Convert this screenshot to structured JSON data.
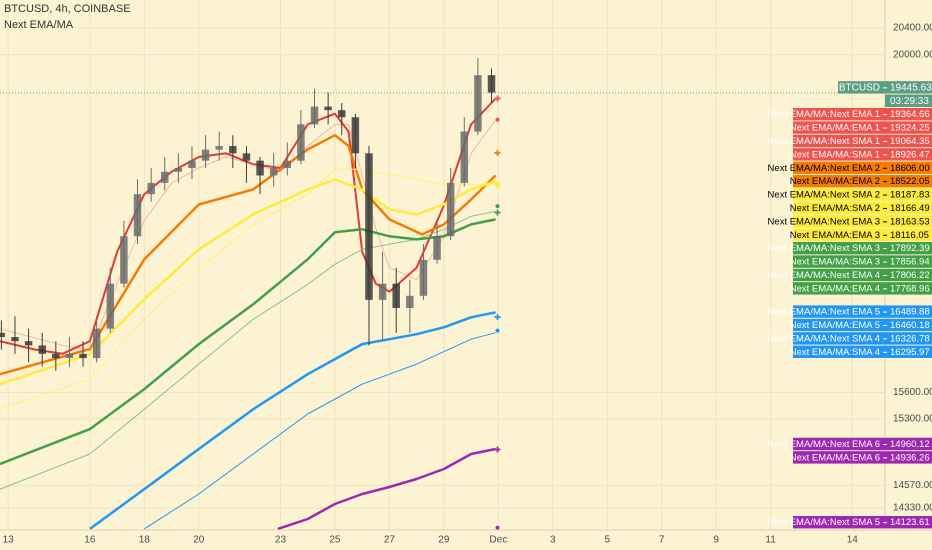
{
  "chart_data": {
    "type": "candlestick",
    "title": "BTCUSD, 4h, COINBASE",
    "subtitle": "Next EMA/MA",
    "log_scale": true,
    "grid": true,
    "ylim": [
      14100,
      20820
    ],
    "yticks": [
      {
        "value": 20400,
        "label": "20400.00"
      },
      {
        "value": 20000,
        "label": "20000.00"
      },
      {
        "value": 15600,
        "label": "15600.00"
      },
      {
        "value": 15300,
        "label": "15300.00"
      },
      {
        "value": 14570,
        "label": "14570.00"
      },
      {
        "value": 14330,
        "label": "14330.00"
      }
    ],
    "xlim": [
      12.7,
      45.2
    ],
    "xticks": [
      13,
      16,
      18,
      20,
      23,
      25,
      27,
      29,
      {
        "value": 31,
        "label": "Dec"
      },
      {
        "value": 33,
        "label": "3"
      },
      {
        "value": 35,
        "label": "5"
      },
      {
        "value": 37,
        "label": "7"
      },
      {
        "value": 39,
        "label": "9"
      },
      {
        "value": 41,
        "label": "11"
      },
      {
        "value": 44,
        "label": "14"
      }
    ],
    "up_color": "#6b6b6b",
    "down_color": "#3a3a3a",
    "x": [
      12.75,
      13.25,
      13.75,
      14.25,
      14.75,
      15.25,
      15.75,
      16.25,
      16.75,
      17.25,
      17.75,
      18.25,
      18.75,
      19.25,
      19.75,
      20.25,
      20.75,
      21.25,
      21.75,
      22.25,
      22.75,
      23.25,
      23.75,
      24.25,
      24.75,
      25.25,
      25.75,
      26.25,
      26.75,
      27.25,
      27.75,
      28.25,
      28.75,
      29.25,
      29.75,
      30.25,
      30.75
    ],
    "open": [
      16300,
      16250,
      16200,
      16150,
      16050,
      16000,
      16050,
      16000,
      16350,
      16900,
      17500,
      18050,
      18200,
      18350,
      18400,
      18500,
      18650,
      18700,
      18600,
      18500,
      18300,
      18400,
      18500,
      19000,
      19250,
      19200,
      19100,
      18600,
      16700,
      16900,
      16600,
      16750,
      17200,
      17500,
      18200,
      18900,
      19700
    ],
    "high": [
      16450,
      16500,
      16350,
      16300,
      16200,
      16250,
      16200,
      16500,
      17100,
      17700,
      18250,
      18400,
      18550,
      18600,
      18700,
      18850,
      18900,
      18850,
      18700,
      18550,
      18600,
      18750,
      19200,
      19500,
      19450,
      19300,
      19150,
      18700,
      17300,
      17100,
      16950,
      17400,
      17700,
      18400,
      19100,
      19950,
      19800
    ],
    "low": [
      16100,
      16050,
      15950,
      15900,
      15850,
      15900,
      15900,
      15950,
      16300,
      16850,
      17400,
      17950,
      18100,
      18200,
      18250,
      18400,
      18500,
      18400,
      18200,
      18050,
      18150,
      18300,
      18450,
      18950,
      19000,
      18850,
      18400,
      16150,
      16200,
      16300,
      16300,
      16700,
      17150,
      17450,
      18150,
      18850,
      19300
    ],
    "close": [
      16250,
      16200,
      16150,
      16050,
      16000,
      16050,
      16000,
      16350,
      16900,
      17500,
      18050,
      18200,
      18350,
      18400,
      18500,
      18650,
      18700,
      18600,
      18500,
      18300,
      18400,
      18500,
      19000,
      19250,
      19200,
      19100,
      18600,
      16700,
      16900,
      16600,
      16750,
      17200,
      17500,
      18200,
      18900,
      19700,
      19450
    ],
    "series": [
      {
        "color": "#f4b6a8",
        "width": 1,
        "x": [
          12.7,
          15,
          16,
          17,
          18,
          19,
          20,
          21,
          22,
          23,
          24,
          25,
          25.5,
          26,
          26.5,
          27,
          28,
          29,
          30,
          30.9
        ],
        "values": [
          16350,
          16150,
          16100,
          16900,
          17700,
          18200,
          18400,
          18550,
          18450,
          18350,
          18700,
          19000,
          19000,
          18300,
          17600,
          17100,
          16950,
          17500,
          18600,
          19064
        ]
      },
      {
        "color": "#e53935",
        "width": 2,
        "x": [
          12.7,
          14,
          15,
          16,
          17,
          18,
          19,
          20,
          21,
          22,
          23,
          24,
          25,
          25.5,
          26,
          26.5,
          27,
          28,
          29,
          30,
          30.9
        ],
        "values": [
          16200,
          16100,
          16050,
          16200,
          17300,
          18050,
          18350,
          18550,
          18600,
          18450,
          18400,
          19000,
          19150,
          18900,
          17300,
          16900,
          16800,
          17100,
          17900,
          19000,
          19365
        ]
      },
      {
        "color": "#f57c00",
        "width": 2.5,
        "x": [
          12.7,
          16,
          18,
          20,
          22,
          24,
          25,
          25.5,
          26,
          27,
          28.2,
          29,
          30,
          30.9
        ],
        "values": [
          15812,
          16106,
          17205,
          17913,
          18113,
          18654,
          18850,
          18700,
          18113,
          17718,
          17524,
          17653,
          17979,
          18300
        ]
      },
      {
        "color": "#fff176",
        "width": 1,
        "x": [
          12.7,
          16,
          18,
          20,
          22,
          24,
          25,
          26,
          27,
          28,
          29,
          30,
          30.9
        ],
        "values": [
          15410,
          15755,
          16463,
          17079,
          17653,
          18047,
          18381,
          18381,
          18313,
          18246,
          18180,
          18180,
          18180
        ]
      },
      {
        "color": "#ffeb3b",
        "width": 2.5,
        "x": [
          12.7,
          16,
          18,
          20,
          22,
          24,
          25,
          26,
          27,
          28,
          29,
          30,
          30.9
        ],
        "values": [
          15696,
          16047,
          16708,
          17332,
          17783,
          18113,
          18246,
          18113,
          17848,
          17783,
          17913,
          18113,
          18221
        ]
      },
      {
        "color": "#81c784",
        "width": 1,
        "x": [
          12.7,
          16,
          18,
          20,
          22,
          24,
          25,
          26,
          27,
          28,
          29,
          30,
          30.9
        ],
        "values": [
          14531,
          14910,
          15410,
          15929,
          16463,
          16891,
          17142,
          17332,
          17396,
          17459,
          17589,
          17758,
          17822
        ]
      },
      {
        "color": "#43a047",
        "width": 2.5,
        "x": [
          12.7,
          16,
          18,
          20,
          22,
          24,
          25,
          26,
          27,
          28,
          29,
          30,
          30.9
        ],
        "values": [
          14801,
          15186,
          15639,
          16165,
          16646,
          17205,
          17550,
          17589,
          17499,
          17459,
          17499,
          17653,
          17718
        ]
      },
      {
        "color": "#2196f3",
        "width": 1,
        "x": [
          18,
          20,
          22,
          24,
          26,
          28,
          30,
          30.9
        ],
        "values": [
          14111,
          14478,
          14910,
          15355,
          15696,
          15929,
          16224,
          16302
        ]
      },
      {
        "color": "#2196f3",
        "width": 2.5,
        "x": [
          16,
          18,
          20,
          22,
          24,
          25,
          26,
          27,
          28,
          29,
          30,
          30.9
        ],
        "values": [
          14111,
          14531,
          14965,
          15410,
          15812,
          15988,
          16165,
          16224,
          16283,
          16367,
          16487,
          16548
        ]
      },
      {
        "color": "#9c27b0",
        "width": 2.5,
        "x": [
          22.9,
          24,
          25,
          26,
          27,
          28,
          29,
          30,
          30.9
        ],
        "values": [
          14111,
          14215,
          14372,
          14478,
          14553,
          14639,
          14747,
          14910,
          14965
        ]
      }
    ],
    "current": {
      "name": "BTCUSD",
      "value": 19445.63,
      "countdown": "03:29:33",
      "color": "#5b9e83",
      "text_color": "#ffffff"
    },
    "price_tags": [
      {
        "name": "Next EMA/MA:Next EMA 1",
        "value": 19364.66,
        "color": "#ef5350",
        "text_color": "#ffffff",
        "marker": "plus"
      },
      {
        "name": "Next EMA/MA:EMA 1",
        "value": 19324.25,
        "color": "#ef5350",
        "text_color": "#ffffff"
      },
      {
        "name": "Next EMA/MA:Next SMA 1",
        "value": 19064.35,
        "color": "#ef5350",
        "text_color": "#ffffff",
        "marker": "dot"
      },
      {
        "name": "Next EMA/MA:SMA 1",
        "value": 18926.47,
        "color": "#ef5350",
        "text_color": "#ffffff"
      },
      {
        "name": "Next EMA/MA:Next EMA 2",
        "value": 18606,
        "value_label": "18606.00",
        "color": "#f57c00",
        "text_color": "#000000",
        "marker": "plus"
      },
      {
        "name": "Next EMA/MA:EMA 2",
        "value": 18522.05,
        "color": "#f57c00",
        "text_color": "#000000"
      },
      {
        "name": "Next EMA/MA:Next SMA 2",
        "value": 18187.83,
        "color": "#ffeb3b",
        "text_color": "#000000",
        "marker": "dot"
      },
      {
        "name": "Next EMA/MA:SMA 2",
        "value": 18166.49,
        "color": "#ffeb3b",
        "text_color": "#000000"
      },
      {
        "name": "Next EMA/MA:Next EMA 3",
        "value": 18163.53,
        "color": "#ffeb3b",
        "text_color": "#000000",
        "marker": "plus"
      },
      {
        "name": "Next EMA/MA:EMA 3",
        "value": 18116.05,
        "color": "#ffeb3b",
        "text_color": "#000000"
      },
      {
        "name": "Next EMA/MA:Next SMA 3",
        "value": 17892.39,
        "color": "#43a047",
        "text_color": "#ffffff",
        "marker": "dot"
      },
      {
        "name": "Next EMA/MA:SMA 3",
        "value": 17856.94,
        "color": "#43a047",
        "text_color": "#ffffff"
      },
      {
        "name": "Next EMA/MA:Next EMA 4",
        "value": 17806.22,
        "color": "#43a047",
        "text_color": "#ffffff",
        "marker": "plus"
      },
      {
        "name": "Next EMA/MA:EMA 4",
        "value": 17768.96,
        "color": "#43a047",
        "text_color": "#ffffff"
      },
      {
        "name": "Next EMA/MA:Next EMA 5",
        "value": 16489.88,
        "color": "#2196f3",
        "text_color": "#ffffff",
        "marker": "plus"
      },
      {
        "name": "Next EMA/MA:EMA 5",
        "value": 16460.18,
        "color": "#2196f3",
        "text_color": "#ffffff"
      },
      {
        "name": "Next EMA/MA:Next SMA 4",
        "value": 16326.78,
        "color": "#2196f3",
        "text_color": "#ffffff",
        "marker": "dot"
      },
      {
        "name": "Next EMA/MA:SMA 4",
        "value": 16295.97,
        "color": "#2196f3",
        "text_color": "#ffffff"
      },
      {
        "name": "Next EMA/MA:Next EMA 6",
        "value": 14960.12,
        "color": "#9c27b0",
        "text_color": "#ffffff",
        "marker": "plus"
      },
      {
        "name": "Next EMA/MA:EMA 6",
        "value": 14936.26,
        "color": "#9c27b0",
        "text_color": "#ffffff"
      },
      {
        "name": "Next EMA/MA:Next SMA 5",
        "value": 14123.61,
        "color": "#9c27b0",
        "text_color": "#ffffff",
        "marker": "dot"
      }
    ]
  }
}
